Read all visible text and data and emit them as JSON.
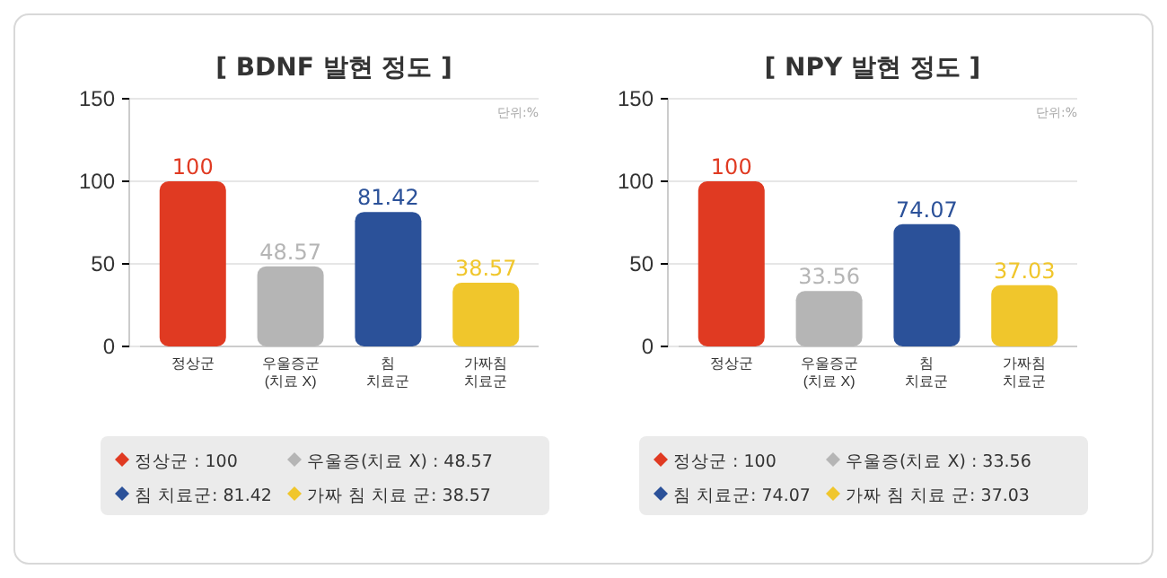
{
  "chart_data": [
    {
      "type": "bar",
      "title": "[ BDNF 발현 정도 ]",
      "categories": [
        "정상군",
        "우울증군\n(치료 X)",
        "침\n치료군",
        "가짜침\n치료군"
      ],
      "values": [
        100,
        48.57,
        81.42,
        38.57
      ],
      "colors": [
        "#e03a22",
        "#b5b5b5",
        "#2b5199",
        "#f0c62c"
      ],
      "ylim": [
        0,
        150
      ],
      "yticks": [
        0,
        50,
        100,
        150
      ],
      "grid": "y",
      "data_labels": true,
      "annotations": [
        "단위:%",
        "정상군 : 100",
        "우울증(치료 X) : 48.57",
        "침 치료군: 81.42",
        "가짜 침 치료 군: 38.57"
      ]
    },
    {
      "type": "bar",
      "title": "[ NPY 발현 정도 ]",
      "categories": [
        "정상군",
        "우울증군\n(치료 X)",
        "침\n치료군",
        "가짜침\n치료군"
      ],
      "values": [
        100,
        33.56,
        74.07,
        37.03
      ],
      "colors": [
        "#e03a22",
        "#b5b5b5",
        "#2b5199",
        "#f0c62c"
      ],
      "ylim": [
        0,
        150
      ],
      "yticks": [
        0,
        50,
        100,
        150
      ],
      "grid": "y",
      "data_labels": true,
      "annotations": [
        "단위:%",
        "정상군 : 100",
        "우울증(치료 X) : 33.56",
        "침 치료군: 74.07",
        "가짜 침 치료 군: 37.03"
      ]
    }
  ]
}
